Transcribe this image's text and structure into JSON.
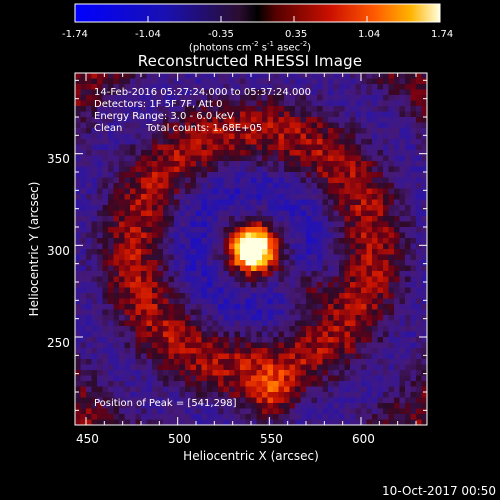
{
  "colorbar": {
    "tick_labels": [
      "-1.74",
      "-1.04",
      "-0.35",
      "0.35",
      "1.04",
      "1.74"
    ],
    "unit_main": "(photons cm",
    "unit_exp1": "-2",
    "unit_mid1": " s",
    "unit_exp2": "-1",
    "unit_mid2": " asec",
    "unit_exp3": "-2",
    "unit_end": ")",
    "range": [
      -1.74,
      1.74
    ]
  },
  "plot": {
    "title": "Reconstructed RHESSI Image",
    "annotations": {
      "date_range": "14-Feb-2016 05:27:24.000 to 05:37:24.000",
      "detectors": "Detectors: 1F 5F 7F, Att 0",
      "energy": "Energy Range: 3.0 - 6.0 keV",
      "clean_label": "Clean",
      "total_counts": "Total counts: 1.68E+05",
      "peak": "Position of Peak = [541,298]"
    },
    "x_axis": {
      "label": "Heliocentric X (arcsec)",
      "ticks": [
        "450",
        "500",
        "550",
        "600"
      ],
      "range": [
        444,
        636
      ]
    },
    "y_axis": {
      "label": "Heliocentric Y (arcsec)",
      "ticks": [
        "250",
        "300",
        "350"
      ],
      "range": [
        202,
        394
      ]
    },
    "peak_position": [
      541,
      298
    ]
  },
  "footer": {
    "date": "10-Oct-2017 00:50"
  }
}
